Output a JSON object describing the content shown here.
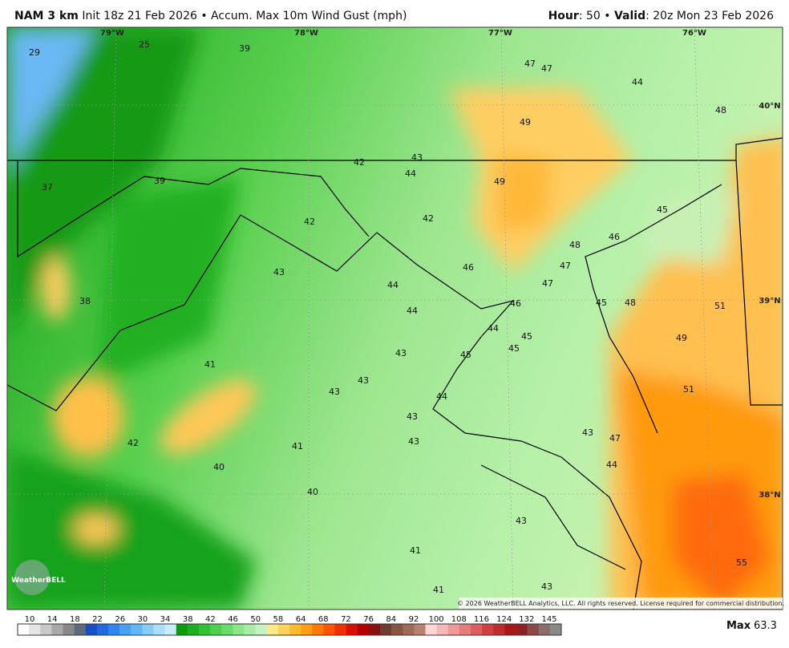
{
  "header": {
    "model": "NAM 3 km",
    "subtitle": "Init 18z 21 Feb 2026 • Accum. Max 10m Wind Gust (mph)",
    "hour_label": "Hour",
    "hour_text": ": 50 •",
    "valid_label": "Valid",
    "valid_text": ": 20z Mon 23 Feb 2026"
  },
  "map": {
    "longitude_labels": [
      "79°W",
      "78°W",
      "77°W",
      "76°W"
    ],
    "latitude_labels": [
      "40°N",
      "39°N",
      "38°N"
    ],
    "point_values": [
      29,
      25,
      39,
      47,
      47,
      44,
      48,
      49,
      42,
      43,
      44,
      37,
      39,
      49,
      45,
      42,
      42,
      48,
      46,
      47,
      46,
      43,
      47,
      44,
      38,
      46,
      44,
      45,
      48,
      51,
      44,
      45,
      45,
      49,
      43,
      45,
      41,
      43,
      43,
      44,
      51,
      43,
      43,
      47,
      42,
      43,
      41,
      44,
      40,
      40,
      43,
      41,
      55,
      43,
      41
    ],
    "copyright": "© 2026 WeatherBELL Analytics, LLC. All rights reserved. License required for commercial distribution.",
    "logo": "WeatherBELL"
  },
  "colorbar": {
    "ticks": [
      10,
      14,
      18,
      22,
      26,
      30,
      34,
      38,
      42,
      46,
      50,
      58,
      64,
      68,
      72,
      76,
      84,
      92,
      100,
      108,
      116,
      124,
      132,
      145
    ],
    "colors": [
      "#ffffff",
      "#e4e4e4",
      "#c8c8c8",
      "#a8a8a8",
      "#888888",
      "#5f6b7a",
      "#1550c8",
      "#1f6ae0",
      "#2f86ee",
      "#47a0f4",
      "#63b6f7",
      "#86cdfa",
      "#a8e0fb",
      "#c6eefc",
      "#0c9a10",
      "#1fae1f",
      "#34c234",
      "#4ed04e",
      "#6adb6a",
      "#8ae68a",
      "#a8eea8",
      "#c4f4c4",
      "#ffe888",
      "#ffd25a",
      "#ffbb30",
      "#ff9e14",
      "#ff7a00",
      "#ff5500",
      "#f03000",
      "#d81000",
      "#b40000",
      "#8a1010",
      "#6e3c30",
      "#8a5444",
      "#a06a58",
      "#b88070",
      "#ffd6d6",
      "#f5b8b8",
      "#ee9a9a",
      "#e67c7c",
      "#dc5e5e",
      "#d04040",
      "#c02a2a",
      "#a81818",
      "#902020",
      "#8a4848",
      "#8c6c6c",
      "#8a8a8a"
    ],
    "max_label": "Max",
    "max_value": 63.3
  }
}
